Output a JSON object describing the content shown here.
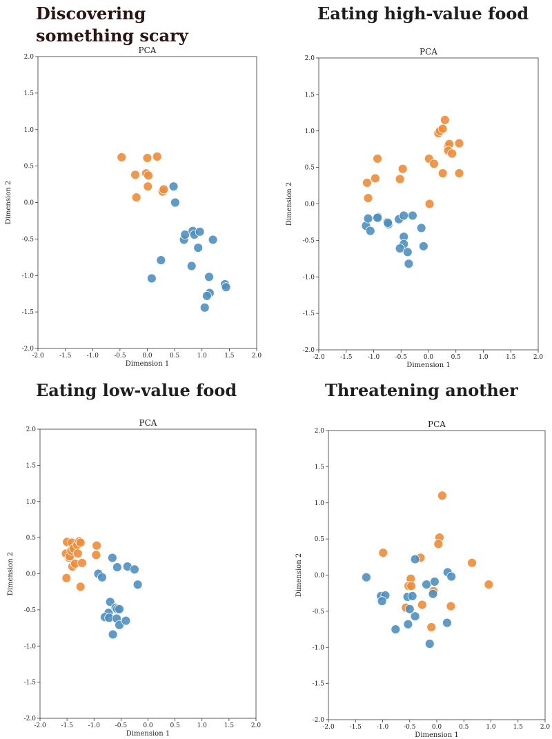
{
  "colors": {
    "blue": "#4f8fc0",
    "orange": "#ef8c38",
    "point_edge": "#ffffff",
    "frame": "#333333"
  },
  "chart_data": [
    {
      "type": "scatter",
      "section_title": "Discovering something scary",
      "title": "PCA",
      "xlabel": "Dimension 1",
      "ylabel": "Dimension 2",
      "xlim": [
        -2.0,
        2.0
      ],
      "ylim": [
        -2.0,
        2.0
      ],
      "xticks": [
        "-2.0",
        "-1.5",
        "-1.0",
        "-0.5",
        "0.0",
        "0.5",
        "1.0",
        "1.5",
        "2.0"
      ],
      "yticks": [
        "-2.0",
        "-1.5",
        "-1.0",
        "-0.5",
        "0.0",
        "0.5",
        "1.0",
        "1.5",
        "2.0"
      ],
      "grid": false,
      "series": [
        {
          "color": "orange",
          "points": [
            [
              -0.47,
              0.62
            ],
            [
              -0.22,
              0.38
            ],
            [
              -0.2,
              0.07
            ],
            [
              -0.02,
              0.4
            ],
            [
              0.0,
              0.61
            ],
            [
              0.02,
              0.37
            ],
            [
              0.01,
              0.22
            ],
            [
              0.18,
              0.63
            ],
            [
              0.28,
              0.15
            ],
            [
              0.3,
              0.18
            ]
          ]
        },
        {
          "color": "blue",
          "points": [
            [
              0.48,
              0.22
            ],
            [
              0.51,
              0.0
            ],
            [
              0.67,
              -0.51
            ],
            [
              0.69,
              -0.44
            ],
            [
              0.83,
              -0.39
            ],
            [
              0.86,
              -0.44
            ],
            [
              0.96,
              -0.4
            ],
            [
              0.93,
              -0.62
            ],
            [
              1.2,
              -0.51
            ],
            [
              0.81,
              -0.87
            ],
            [
              0.25,
              -0.79
            ],
            [
              0.08,
              -1.04
            ],
            [
              1.13,
              -1.02
            ],
            [
              1.14,
              -1.24
            ],
            [
              1.09,
              -1.28
            ],
            [
              1.05,
              -1.44
            ],
            [
              1.42,
              -1.12
            ],
            [
              1.44,
              -1.16
            ]
          ]
        }
      ]
    },
    {
      "type": "scatter",
      "section_title": "Eating high-value food",
      "title": "PCA",
      "xlabel": "Dimension 1",
      "ylabel": "Dimension 2",
      "xlim": [
        -2.0,
        2.0
      ],
      "ylim": [
        -2.0,
        2.0
      ],
      "xticks": [
        "-2.0",
        "-1.5",
        "-1.0",
        "-0.5",
        "0.0",
        "0.5",
        "1.0",
        "1.5",
        "2.0"
      ],
      "yticks": [
        "-2.0",
        "-1.5",
        "-1.0",
        "-0.5",
        "0.0",
        "0.5",
        "1.0",
        "1.5",
        "2.0"
      ],
      "grid": false,
      "series": [
        {
          "color": "orange",
          "points": [
            [
              -0.93,
              0.62
            ],
            [
              -0.97,
              0.35
            ],
            [
              -1.12,
              0.29
            ],
            [
              -1.1,
              0.08
            ],
            [
              -0.47,
              0.48
            ],
            [
              -0.52,
              0.34
            ],
            [
              0.01,
              0.62
            ],
            [
              0.1,
              0.55
            ],
            [
              0.02,
              0.0
            ],
            [
              0.18,
              0.97
            ],
            [
              0.21,
              1.0
            ],
            [
              0.26,
              1.03
            ],
            [
              0.3,
              1.15
            ],
            [
              0.36,
              0.79
            ],
            [
              0.38,
              0.82
            ],
            [
              0.36,
              0.73
            ],
            [
              0.43,
              0.69
            ],
            [
              0.26,
              0.42
            ],
            [
              0.56,
              0.83
            ],
            [
              0.56,
              0.42
            ]
          ]
        },
        {
          "color": "blue",
          "points": [
            [
              -1.14,
              -0.3
            ],
            [
              -1.1,
              -0.2
            ],
            [
              -1.06,
              -0.37
            ],
            [
              -0.92,
              -0.18
            ],
            [
              -0.93,
              -0.19
            ],
            [
              -0.75,
              -0.25
            ],
            [
              -0.73,
              -0.28
            ],
            [
              -0.74,
              -0.26
            ],
            [
              -0.54,
              -0.21
            ],
            [
              -0.45,
              -0.16
            ],
            [
              -0.45,
              -0.45
            ],
            [
              -0.45,
              -0.55
            ],
            [
              -0.29,
              -0.16
            ],
            [
              -0.52,
              -0.61
            ],
            [
              -0.38,
              -0.66
            ],
            [
              -0.36,
              -0.82
            ],
            [
              -0.13,
              -0.33
            ],
            [
              -0.09,
              -0.58
            ]
          ]
        }
      ]
    },
    {
      "type": "scatter",
      "section_title": "Eating low-value food",
      "title": "PCA",
      "xlabel": "Dimension 1",
      "ylabel": "Dimension 2",
      "xlim": [
        -2.0,
        2.0
      ],
      "ylim": [
        -2.0,
        2.0
      ],
      "xticks": [
        "-2.0",
        "-1.5",
        "-1.0",
        "-0.5",
        "0.0",
        "0.5",
        "1.0",
        "1.5",
        "2.0"
      ],
      "yticks": [
        "-2.0",
        "-1.5",
        "-1.0",
        "-0.5",
        "0.0",
        "0.5",
        "1.0",
        "1.5",
        "2.0"
      ],
      "grid": false,
      "series": [
        {
          "color": "orange",
          "points": [
            [
              -1.5,
              0.44
            ],
            [
              -1.52,
              0.28
            ],
            [
              -1.46,
              0.22
            ],
            [
              -1.45,
              0.24
            ],
            [
              -1.41,
              0.43
            ],
            [
              -1.42,
              0.32
            ],
            [
              -1.4,
              0.1
            ],
            [
              -1.38,
              0.35
            ],
            [
              -1.35,
              0.14
            ],
            [
              -1.31,
              0.4
            ],
            [
              -1.3,
              0.28
            ],
            [
              -1.27,
              0.45
            ],
            [
              -1.25,
              0.43
            ],
            [
              -1.22,
              0.15
            ],
            [
              -1.25,
              -0.18
            ],
            [
              -1.51,
              -0.06
            ],
            [
              -0.95,
              0.39
            ],
            [
              -0.96,
              0.26
            ]
          ]
        },
        {
          "color": "blue",
          "points": [
            [
              -0.66,
              0.22
            ],
            [
              -0.92,
              0.0
            ],
            [
              -0.85,
              -0.05
            ],
            [
              -0.57,
              0.09
            ],
            [
              -0.38,
              0.1
            ],
            [
              -0.25,
              0.06
            ],
            [
              -0.19,
              -0.15
            ],
            [
              -0.7,
              -0.39
            ],
            [
              -0.73,
              -0.54
            ],
            [
              -0.8,
              -0.6
            ],
            [
              -0.72,
              -0.61
            ],
            [
              -0.6,
              -0.47
            ],
            [
              -0.57,
              -0.49
            ],
            [
              -0.53,
              -0.49
            ],
            [
              -0.58,
              -0.62
            ],
            [
              -0.53,
              -0.71
            ],
            [
              -0.41,
              -0.65
            ],
            [
              -0.65,
              -0.84
            ]
          ]
        }
      ]
    },
    {
      "type": "scatter",
      "section_title": "Threatening another",
      "title": "PCA",
      "xlabel": "Dimension 1",
      "ylabel": "Dimension 2",
      "xlim": [
        -2.0,
        2.0
      ],
      "ylim": [
        -2.0,
        2.0
      ],
      "xticks": [
        "-2.0",
        "-1.5",
        "-1.0",
        "-0.5",
        "0.0",
        "0.5",
        "1.0",
        "1.5",
        "2.0"
      ],
      "yticks": [
        "-2.0",
        "-1.5",
        "-1.0",
        "-0.5",
        "0.0",
        "0.5",
        "1.0",
        "1.5",
        "2.0"
      ],
      "grid": false,
      "series": [
        {
          "color": "orange",
          "points": [
            [
              0.1,
              1.1
            ],
            [
              0.05,
              0.52
            ],
            [
              0.03,
              0.43
            ],
            [
              -0.99,
              0.31
            ],
            [
              -0.3,
              0.24
            ],
            [
              0.65,
              0.17
            ],
            [
              0.96,
              -0.13
            ],
            [
              -0.48,
              -0.05
            ],
            [
              -0.52,
              -0.15
            ],
            [
              -0.47,
              -0.15
            ],
            [
              -0.06,
              -0.22
            ],
            [
              -0.27,
              -0.41
            ],
            [
              0.26,
              -0.43
            ],
            [
              -0.57,
              -0.45
            ],
            [
              -0.1,
              -0.72
            ]
          ]
        },
        {
          "color": "blue",
          "points": [
            [
              -1.3,
              -0.03
            ],
            [
              -1.03,
              -0.29
            ],
            [
              -0.95,
              -0.28
            ],
            [
              -1.01,
              -0.36
            ],
            [
              -0.4,
              0.22
            ],
            [
              -0.19,
              -0.13
            ],
            [
              -0.04,
              -0.09
            ],
            [
              0.2,
              0.04
            ],
            [
              0.27,
              -0.02
            ],
            [
              -0.07,
              -0.26
            ],
            [
              -0.54,
              -0.3
            ],
            [
              -0.45,
              -0.29
            ],
            [
              -0.5,
              -0.47
            ],
            [
              -0.4,
              -0.57
            ],
            [
              -0.76,
              -0.75
            ],
            [
              -0.53,
              -0.68
            ],
            [
              0.19,
              -0.66
            ],
            [
              -0.13,
              -0.95
            ]
          ]
        }
      ]
    }
  ]
}
